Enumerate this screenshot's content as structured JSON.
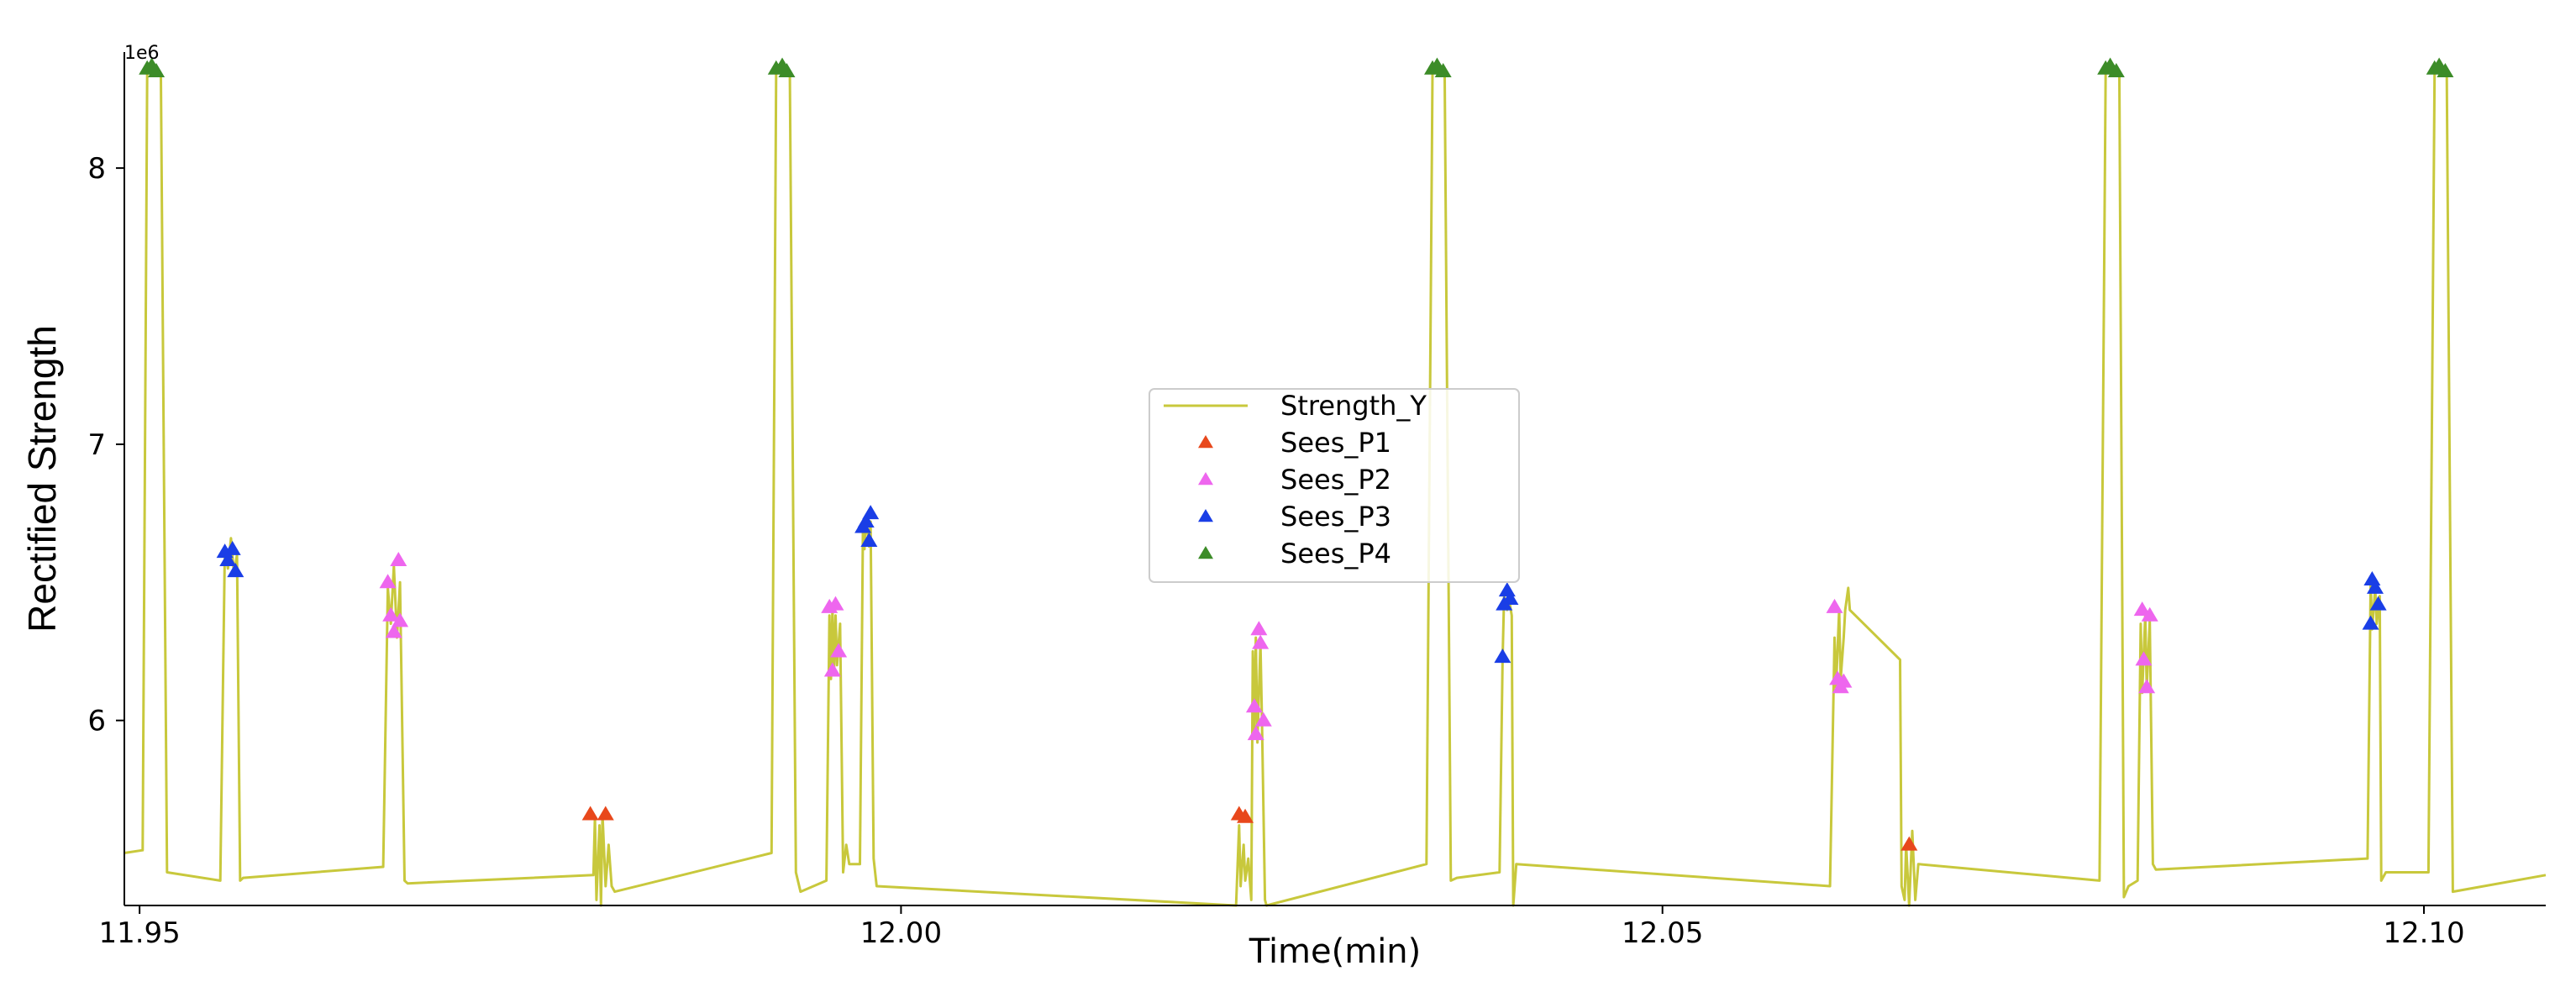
{
  "chart_data": {
    "type": "line",
    "title": "",
    "xlabel": "Time(min)",
    "ylabel": "Rectified Strength",
    "y_offset_label": "1e6",
    "xlim": [
      11.949,
      12.108
    ],
    "ylim": [
      5330000,
      8420000
    ],
    "x_ticks": [
      11.95,
      12.0,
      12.05,
      12.1
    ],
    "x_tick_labels": [
      "11.95",
      "12.00",
      "12.05",
      "12.10"
    ],
    "y_ticks": [
      6000000,
      7000000,
      8000000
    ],
    "y_tick_labels": [
      "6",
      "7",
      "8"
    ],
    "grid": false,
    "legend_position": "center",
    "colors": {
      "Strength_Y": "#c8c83c",
      "Sees_P1": "#e8481c",
      "Sees_P2": "#ee66ee",
      "Sees_P3": "#1a3ee6",
      "Sees_P4": "#3c8c28"
    },
    "series": [
      {
        "name": "Strength_Y",
        "kind": "line",
        "points": [
          [
            11.949,
            5520000.0
          ],
          [
            11.9502,
            5530000.0
          ],
          [
            11.9505,
            8350000.0
          ],
          [
            11.9509,
            8370000.0
          ],
          [
            11.9514,
            8330000.0
          ],
          [
            11.9518,
            5450000.0
          ],
          [
            11.9553,
            5420000.0
          ],
          [
            11.9556,
            6620000.0
          ],
          [
            11.9558,
            6550000.0
          ],
          [
            11.956,
            6660000.0
          ],
          [
            11.9562,
            6530000.0
          ],
          [
            11.9564,
            6600000.0
          ],
          [
            11.9566,
            5420000.0
          ],
          [
            11.9568,
            5430000.0
          ],
          [
            11.966,
            5470000.0
          ],
          [
            11.9663,
            6480000.0
          ],
          [
            11.9665,
            6350000.0
          ],
          [
            11.9667,
            6560000.0
          ],
          [
            11.9669,
            6300000.0
          ],
          [
            11.9671,
            6500000.0
          ],
          [
            11.9674,
            5420000.0
          ],
          [
            11.9676,
            5410000.0
          ],
          [
            11.9798,
            5440000.0
          ],
          [
            11.9799,
            5650000.0
          ],
          [
            11.98,
            5350000.0
          ],
          [
            11.9802,
            5620000.0
          ],
          [
            11.9803,
            5330000.0
          ],
          [
            11.9804,
            5660000.0
          ],
          [
            11.9806,
            5400000.0
          ],
          [
            11.9808,
            5550000.0
          ],
          [
            11.981,
            5400000.0
          ],
          [
            11.9812,
            5380000.0
          ],
          [
            11.9915,
            5520000.0
          ],
          [
            11.9918,
            8350000.0
          ],
          [
            11.9922,
            8370000.0
          ],
          [
            11.9927,
            8330000.0
          ],
          [
            11.9931,
            5450000.0
          ],
          [
            11.9934,
            5380000.0
          ],
          [
            11.9951,
            5420000.0
          ],
          [
            11.9953,
            6380000.0
          ],
          [
            11.9954,
            6150000.0
          ],
          [
            11.9955,
            6400000.0
          ],
          [
            11.9956,
            6180000.0
          ],
          [
            11.9957,
            6380000.0
          ],
          [
            11.9958,
            6200000.0
          ],
          [
            11.996,
            6350000.0
          ],
          [
            11.9962,
            5450000.0
          ],
          [
            11.9964,
            5550000.0
          ],
          [
            11.9966,
            5480000.0
          ],
          [
            11.9973,
            5480000.0
          ],
          [
            11.9975,
            6700000.0
          ],
          [
            11.9976,
            6620000.0
          ],
          [
            11.9977,
            6740000.0
          ],
          [
            11.9979,
            6630000.0
          ],
          [
            11.998,
            6720000.0
          ],
          [
            11.9982,
            5500000.0
          ],
          [
            11.9984,
            5400000.0
          ],
          [
            12.022,
            5330000.0
          ],
          [
            12.0222,
            5620000.0
          ],
          [
            12.0223,
            5400000.0
          ],
          [
            12.0225,
            5550000.0
          ],
          [
            12.0226,
            5420000.0
          ],
          [
            12.0228,
            5500000.0
          ],
          [
            12.023,
            5350000.0
          ],
          [
            12.0231,
            6250000.0
          ],
          [
            12.0232,
            5950000.0
          ],
          [
            12.0233,
            6300000.0
          ],
          [
            12.0234,
            5920000.0
          ],
          [
            12.0236,
            6280000.0
          ],
          [
            12.0237,
            6000000.0
          ],
          [
            12.0239,
            5350000.0
          ],
          [
            12.024,
            5330000.0
          ],
          [
            12.0345,
            5480000.0
          ],
          [
            12.0349,
            8350000.0
          ],
          [
            12.0353,
            8370000.0
          ],
          [
            12.0357,
            8330000.0
          ],
          [
            12.0361,
            5420000.0
          ],
          [
            12.0365,
            5430000.0
          ],
          [
            12.0393,
            5450000.0
          ],
          [
            12.0395,
            6220000.0
          ],
          [
            12.0396,
            6450000.0
          ],
          [
            12.0398,
            6400000.0
          ],
          [
            12.0399,
            6450000.0
          ],
          [
            12.0401,
            6380000.0
          ],
          [
            12.0402,
            5330000.0
          ],
          [
            12.0404,
            5480000.0
          ],
          [
            12.061,
            5400000.0
          ],
          [
            12.0613,
            6300000.0
          ],
          [
            12.0614,
            6120000.0
          ],
          [
            12.0616,
            6400000.0
          ],
          [
            12.0617,
            6150000.0
          ],
          [
            12.0619,
            6300000.0
          ],
          [
            12.062,
            6400000.0
          ],
          [
            12.0622,
            6480000.0
          ],
          [
            12.0623,
            6400000.0
          ],
          [
            12.0656,
            6220000.0
          ],
          [
            12.0657,
            5400000.0
          ],
          [
            12.0659,
            5350000.0
          ],
          [
            12.066,
            5550000.0
          ],
          [
            12.0662,
            5330000.0
          ],
          [
            12.0664,
            5600000.0
          ],
          [
            12.0666,
            5350000.0
          ],
          [
            12.0668,
            5480000.0
          ],
          [
            12.0787,
            5420000.0
          ],
          [
            12.0791,
            8350000.0
          ],
          [
            12.0795,
            8370000.0
          ],
          [
            12.08,
            8330000.0
          ],
          [
            12.0803,
            5360000.0
          ],
          [
            12.0806,
            5400000.0
          ],
          [
            12.0812,
            5420000.0
          ],
          [
            12.0814,
            6350000.0
          ],
          [
            12.0815,
            6100000.0
          ],
          [
            12.0817,
            6380000.0
          ],
          [
            12.0818,
            6120000.0
          ],
          [
            12.082,
            6360000.0
          ],
          [
            12.0822,
            5480000.0
          ],
          [
            12.0824,
            5460000.0
          ],
          [
            12.0963,
            5500000.0
          ],
          [
            12.0965,
            6500000.0
          ],
          [
            12.0966,
            6330000.0
          ],
          [
            12.0968,
            6480000.0
          ],
          [
            12.0969,
            6350000.0
          ],
          [
            12.0971,
            6450000.0
          ],
          [
            12.0972,
            5420000.0
          ],
          [
            12.0975,
            5450000.0
          ],
          [
            12.1003,
            5450000.0
          ],
          [
            12.1007,
            8350000.0
          ],
          [
            12.1011,
            8370000.0
          ],
          [
            12.1015,
            8330000.0
          ],
          [
            12.1019,
            5380000.0
          ],
          [
            12.108,
            5440000.0
          ]
        ]
      },
      {
        "name": "Sees_P1",
        "kind": "scatter",
        "marker": "triangle",
        "points": [
          [
            11.9796,
            5660000.0
          ],
          [
            11.9806,
            5660000.0
          ],
          [
            12.0222,
            5660000.0
          ],
          [
            12.0226,
            5650000.0
          ],
          [
            12.0662,
            5550000.0
          ]
        ]
      },
      {
        "name": "Sees_P2",
        "kind": "scatter",
        "marker": "triangle",
        "points": [
          [
            11.9663,
            6500000.0
          ],
          [
            11.9665,
            6380000.0
          ],
          [
            11.9667,
            6320000.0
          ],
          [
            11.967,
            6580000.0
          ],
          [
            11.9671,
            6360000.0
          ],
          [
            11.9953,
            6410000.0
          ],
          [
            11.9955,
            6180000.0
          ],
          [
            11.9957,
            6420000.0
          ],
          [
            11.9959,
            6250000.0
          ],
          [
            12.0232,
            6050000.0
          ],
          [
            12.0233,
            5950000.0
          ],
          [
            12.0235,
            6330000.0
          ],
          [
            12.0236,
            6280000.0
          ],
          [
            12.0238,
            6000000.0
          ],
          [
            12.0613,
            6410000.0
          ],
          [
            12.0615,
            6150000.0
          ],
          [
            12.0617,
            6120000.0
          ],
          [
            12.0619,
            6140000.0
          ],
          [
            12.0815,
            6400000.0
          ],
          [
            12.0816,
            6220000.0
          ],
          [
            12.0818,
            6120000.0
          ],
          [
            12.082,
            6380000.0
          ]
        ]
      },
      {
        "name": "Sees_P3",
        "kind": "scatter",
        "marker": "triangle",
        "points": [
          [
            11.9556,
            6610000.0
          ],
          [
            11.9558,
            6580000.0
          ],
          [
            11.9561,
            6620000.0
          ],
          [
            11.9563,
            6540000.0
          ],
          [
            11.9975,
            6700000.0
          ],
          [
            11.9977,
            6720000.0
          ],
          [
            11.9979,
            6650000.0
          ],
          [
            11.998,
            6750000.0
          ],
          [
            12.0395,
            6230000.0
          ],
          [
            12.0396,
            6420000.0
          ],
          [
            12.0398,
            6470000.0
          ],
          [
            12.04,
            6440000.0
          ],
          [
            12.0965,
            6350000.0
          ],
          [
            12.0966,
            6510000.0
          ],
          [
            12.0968,
            6480000.0
          ],
          [
            12.097,
            6420000.0
          ]
        ]
      },
      {
        "name": "Sees_P4",
        "kind": "scatter",
        "marker": "triangle",
        "points": [
          [
            11.9505,
            8360000.0
          ],
          [
            11.9508,
            8370000.0
          ],
          [
            11.9511,
            8350000.0
          ],
          [
            11.9918,
            8360000.0
          ],
          [
            11.9922,
            8370000.0
          ],
          [
            11.9925,
            8350000.0
          ],
          [
            12.0349,
            8360000.0
          ],
          [
            12.0352,
            8370000.0
          ],
          [
            12.0356,
            8350000.0
          ],
          [
            12.0791,
            8360000.0
          ],
          [
            12.0794,
            8370000.0
          ],
          [
            12.0798,
            8350000.0
          ],
          [
            12.1007,
            8360000.0
          ],
          [
            12.101,
            8370000.0
          ],
          [
            12.1014,
            8350000.0
          ]
        ]
      }
    ]
  }
}
